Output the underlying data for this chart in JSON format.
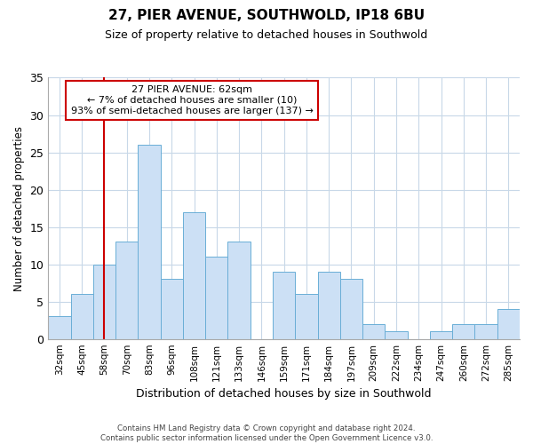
{
  "title": "27, PIER AVENUE, SOUTHWOLD, IP18 6BU",
  "subtitle": "Size of property relative to detached houses in Southwold",
  "xlabel": "Distribution of detached houses by size in Southwold",
  "ylabel": "Number of detached properties",
  "bar_labels": [
    "32sqm",
    "45sqm",
    "58sqm",
    "70sqm",
    "83sqm",
    "96sqm",
    "108sqm",
    "121sqm",
    "133sqm",
    "146sqm",
    "159sqm",
    "171sqm",
    "184sqm",
    "197sqm",
    "209sqm",
    "222sqm",
    "234sqm",
    "247sqm",
    "260sqm",
    "272sqm",
    "285sqm"
  ],
  "bar_values": [
    3,
    6,
    10,
    13,
    26,
    8,
    17,
    11,
    13,
    0,
    9,
    6,
    9,
    8,
    2,
    1,
    0,
    1,
    2,
    2,
    4
  ],
  "bar_color": "#cce0f5",
  "bar_edge_color": "#6aaed6",
  "vline_x_idx": 2,
  "vline_color": "#cc0000",
  "annotation_title": "27 PIER AVENUE: 62sqm",
  "annotation_line1": "← 7% of detached houses are smaller (10)",
  "annotation_line2": "93% of semi-detached houses are larger (137) →",
  "annotation_box_color": "#ffffff",
  "annotation_box_edge": "#cc0000",
  "ylim": [
    0,
    35
  ],
  "yticks": [
    0,
    5,
    10,
    15,
    20,
    25,
    30,
    35
  ],
  "footer1": "Contains HM Land Registry data © Crown copyright and database right 2024.",
  "footer2": "Contains public sector information licensed under the Open Government Licence v3.0.",
  "bg_color": "#ffffff",
  "grid_color": "#c8d8e8",
  "title_fontsize": 11,
  "subtitle_fontsize": 9
}
